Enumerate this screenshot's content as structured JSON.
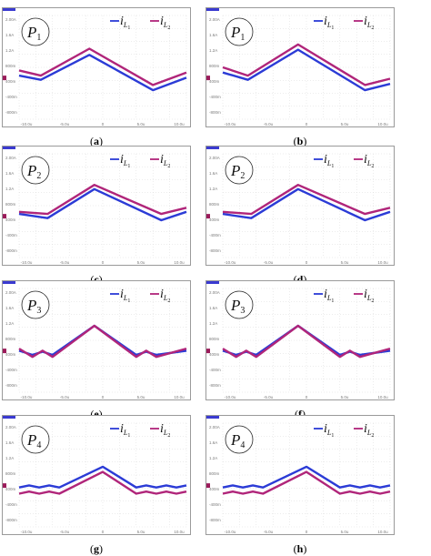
{
  "legend": {
    "series1_symbol": "i",
    "series1_sub": "L",
    "series1_subsub": "1",
    "series2_symbol": "i",
    "series2_sub": "L",
    "series2_subsub": "2"
  },
  "colors": {
    "series1": "#2b3bd6",
    "series2": "#b0257a",
    "grid": "#d9d9d9",
    "frame": "#9a9a9a",
    "topbar": "#3a3ad0"
  },
  "chart_data": [
    {
      "type": "line",
      "caption": "(a)",
      "label_base": "P",
      "label_sub": "1",
      "y_ticks": [
        "2.00A",
        "1.6A",
        "1.2A",
        "800m",
        "400m",
        "-400m",
        "-800m"
      ],
      "x_ticks": [
        "-10.0u",
        "-5.0u",
        "0",
        "5.0u",
        "10.0u"
      ],
      "series": [
        {
          "name": "iL1",
          "x": [
            0,
            0.13,
            0.42,
            0.8,
            1
          ],
          "y": [
            0.58,
            0.62,
            0.38,
            0.72,
            0.6
          ]
        },
        {
          "name": "iL2",
          "x": [
            0,
            0.13,
            0.42,
            0.8,
            1
          ],
          "y": [
            0.53,
            0.58,
            0.32,
            0.67,
            0.55
          ]
        }
      ]
    },
    {
      "type": "line",
      "caption": "(b)",
      "label_base": "P",
      "label_sub": "1",
      "y_ticks": [
        "2.00A",
        "1.6A",
        "1.2A",
        "800m",
        "400m",
        "-400m",
        "-800m"
      ],
      "x_ticks": [
        "-10.0u",
        "-5.0u",
        "0",
        "5.0u",
        "10.0u"
      ],
      "series": [
        {
          "name": "iL1",
          "x": [
            0,
            0.15,
            0.45,
            0.85,
            1
          ],
          "y": [
            0.55,
            0.62,
            0.33,
            0.72,
            0.66
          ]
        },
        {
          "name": "iL2",
          "x": [
            0,
            0.15,
            0.45,
            0.85,
            1
          ],
          "y": [
            0.5,
            0.58,
            0.28,
            0.67,
            0.61
          ]
        }
      ]
    },
    {
      "type": "line",
      "caption": "(c)",
      "label_base": "P",
      "label_sub": "2",
      "y_ticks": [
        "2.00A",
        "1.6A",
        "1.2A",
        "800m",
        "400m",
        "-400m",
        "-800m"
      ],
      "x_ticks": [
        "-10.0u",
        "-5.0u",
        "0",
        "5.0u",
        "10.0u"
      ],
      "series": [
        {
          "name": "iL1",
          "x": [
            0,
            0.17,
            0.45,
            0.85,
            1
          ],
          "y": [
            0.58,
            0.62,
            0.34,
            0.64,
            0.56
          ]
        },
        {
          "name": "iL2",
          "x": [
            0,
            0.17,
            0.45,
            0.85,
            1
          ],
          "y": [
            0.56,
            0.58,
            0.3,
            0.58,
            0.52
          ]
        }
      ]
    },
    {
      "type": "line",
      "caption": "(d)",
      "label_base": "P",
      "label_sub": "2",
      "y_ticks": [
        "2.00A",
        "1.6A",
        "1.2A",
        "800m",
        "400m",
        "-400m",
        "-800m"
      ],
      "x_ticks": [
        "-10.0u",
        "-5.0u",
        "0",
        "5.0u",
        "10.0u"
      ],
      "series": [
        {
          "name": "iL1",
          "x": [
            0,
            0.17,
            0.45,
            0.85,
            1
          ],
          "y": [
            0.58,
            0.62,
            0.34,
            0.64,
            0.56
          ]
        },
        {
          "name": "iL2",
          "x": [
            0,
            0.17,
            0.45,
            0.85,
            1
          ],
          "y": [
            0.56,
            0.58,
            0.3,
            0.58,
            0.52
          ]
        }
      ]
    },
    {
      "type": "line",
      "caption": "(e)",
      "label_base": "P",
      "label_sub": "3",
      "y_ticks": [
        "2.00A",
        "1.6A",
        "1.2A",
        "800m",
        "400m",
        "-400m",
        "-800m"
      ],
      "x_ticks": [
        "-10.0u",
        "-5.0u",
        "0",
        "5.0u",
        "10.0u"
      ],
      "series": [
        {
          "name": "iL1",
          "x": [
            0,
            0.08,
            0.14,
            0.2,
            0.45,
            0.7,
            0.76,
            0.82,
            1
          ],
          "y": [
            0.6,
            0.64,
            0.61,
            0.64,
            0.36,
            0.64,
            0.61,
            0.64,
            0.6
          ]
        },
        {
          "name": "iL2",
          "x": [
            0,
            0.08,
            0.14,
            0.2,
            0.45,
            0.7,
            0.76,
            0.82,
            1
          ],
          "y": [
            0.58,
            0.66,
            0.6,
            0.66,
            0.36,
            0.66,
            0.6,
            0.66,
            0.58
          ]
        }
      ]
    },
    {
      "type": "line",
      "caption": "(f)",
      "label_base": "P",
      "label_sub": "3",
      "y_ticks": [
        "2.00A",
        "1.6A",
        "1.2A",
        "800m",
        "400m",
        "-400m",
        "-800m"
      ],
      "x_ticks": [
        "-10.0u",
        "-5.0u",
        "0",
        "5.0u",
        "10.0u"
      ],
      "series": [
        {
          "name": "iL1",
          "x": [
            0,
            0.08,
            0.14,
            0.2,
            0.45,
            0.7,
            0.76,
            0.82,
            1
          ],
          "y": [
            0.6,
            0.64,
            0.61,
            0.64,
            0.36,
            0.64,
            0.61,
            0.64,
            0.6
          ]
        },
        {
          "name": "iL2",
          "x": [
            0,
            0.08,
            0.14,
            0.2,
            0.45,
            0.7,
            0.76,
            0.82,
            1
          ],
          "y": [
            0.58,
            0.66,
            0.6,
            0.66,
            0.36,
            0.66,
            0.6,
            0.66,
            0.58
          ]
        }
      ]
    },
    {
      "type": "line",
      "caption": "(g)",
      "label_base": "P",
      "label_sub": "4",
      "y_ticks": [
        "2.00A",
        "1.6A",
        "1.2A",
        "800m",
        "400m",
        "-400m",
        "-800m"
      ],
      "x_ticks": [
        "-10.0u",
        "-5.0u",
        "0",
        "5.0u",
        "10.0u"
      ],
      "series": [
        {
          "name": "iL1",
          "x": [
            0,
            0.06,
            0.12,
            0.18,
            0.24,
            0.5,
            0.7,
            0.76,
            0.82,
            0.88,
            0.94,
            1
          ],
          "y": [
            0.62,
            0.6,
            0.62,
            0.6,
            0.62,
            0.42,
            0.62,
            0.6,
            0.62,
            0.6,
            0.62,
            0.6
          ]
        },
        {
          "name": "iL2",
          "x": [
            0,
            0.06,
            0.12,
            0.18,
            0.24,
            0.5,
            0.7,
            0.76,
            0.82,
            0.88,
            0.94,
            1
          ],
          "y": [
            0.68,
            0.66,
            0.68,
            0.66,
            0.68,
            0.47,
            0.68,
            0.66,
            0.68,
            0.66,
            0.68,
            0.66
          ]
        }
      ]
    },
    {
      "type": "line",
      "caption": "(h)",
      "label_base": "P",
      "label_sub": "4",
      "y_ticks": [
        "2.00A",
        "1.6A",
        "1.2A",
        "800m",
        "400m",
        "-400m",
        "-800m"
      ],
      "x_ticks": [
        "-10.0u",
        "-5.0u",
        "0",
        "5.0u",
        "10.0u"
      ],
      "series": [
        {
          "name": "iL1",
          "x": [
            0,
            0.06,
            0.12,
            0.18,
            0.24,
            0.5,
            0.7,
            0.76,
            0.82,
            0.88,
            0.94,
            1
          ],
          "y": [
            0.62,
            0.6,
            0.62,
            0.6,
            0.62,
            0.42,
            0.62,
            0.6,
            0.62,
            0.6,
            0.62,
            0.6
          ]
        },
        {
          "name": "iL2",
          "x": [
            0,
            0.06,
            0.12,
            0.18,
            0.24,
            0.5,
            0.7,
            0.76,
            0.82,
            0.88,
            0.94,
            1
          ],
          "y": [
            0.68,
            0.66,
            0.68,
            0.66,
            0.68,
            0.47,
            0.68,
            0.66,
            0.68,
            0.66,
            0.68,
            0.66
          ]
        }
      ]
    }
  ]
}
